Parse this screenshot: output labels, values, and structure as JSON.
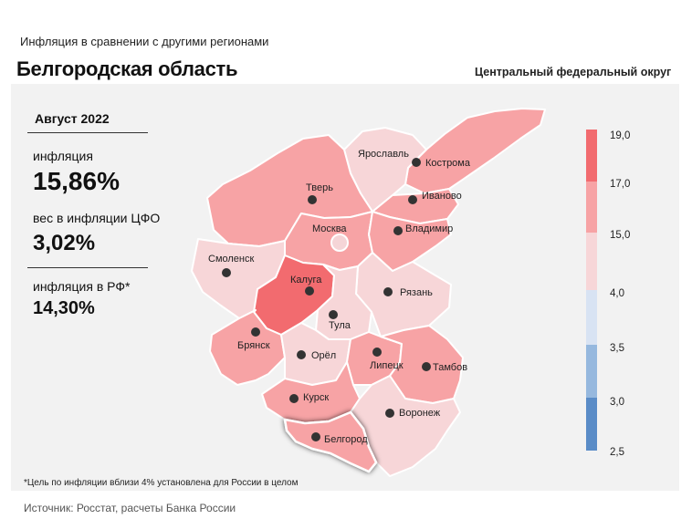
{
  "header": {
    "subtitle": "Инфляция  в сравнении  с другими регионами",
    "region_name": "Белгородская область",
    "district": "Центральный федеральный округ"
  },
  "info": {
    "month": "Август 2022",
    "inflation_label": "инфляция",
    "inflation_value": "15,86%",
    "weight_label": "вес в инфляции  ЦФО",
    "weight_value": "3,02%",
    "rf_label": "инфляция  в РФ*",
    "rf_value": "14,30%"
  },
  "legend": {
    "ticks": [
      "19,0",
      "17,0",
      "15,0",
      "4,0",
      "3,5",
      "3,0",
      "2,5"
    ],
    "colors": {
      "band_17_19": "#f26b6f",
      "band_15_17": "#f7a3a5",
      "band_4_15": "#f7d6d8",
      "band_35_4": "#d8e3f3",
      "band_3_35": "#96b8de",
      "band_25_3": "#5a8cc7"
    }
  },
  "regions": [
    {
      "name": "Ярославль",
      "fill": "#f7d6d8"
    },
    {
      "name": "Кострома",
      "fill": "#f7a3a5"
    },
    {
      "name": "Тверь",
      "fill": "#f7a3a5"
    },
    {
      "name": "Иваново",
      "fill": "#f7a3a5"
    },
    {
      "name": "Москва",
      "fill": "#f7a3a5"
    },
    {
      "name": "Владимир",
      "fill": "#f7a3a5"
    },
    {
      "name": "Смоленск",
      "fill": "#f7d6d8"
    },
    {
      "name": "Калуга",
      "fill": "#f26b6f"
    },
    {
      "name": "Рязань",
      "fill": "#f7d6d8"
    },
    {
      "name": "Тула",
      "fill": "#f7d6d8"
    },
    {
      "name": "Брянск",
      "fill": "#f7a3a5"
    },
    {
      "name": "Орёл",
      "fill": "#f7d6d8"
    },
    {
      "name": "Липецк",
      "fill": "#f7a3a5"
    },
    {
      "name": "Тамбов",
      "fill": "#f7a3a5"
    },
    {
      "name": "Курск",
      "fill": "#f7a3a5"
    },
    {
      "name": "Воронеж",
      "fill": "#f7d6d8"
    },
    {
      "name": "Белгород",
      "fill": "#f7a3a5",
      "highlighted": true
    }
  ],
  "footnote": "*Цель по инфляции вблизи 4% установлена для России в целом",
  "source": "Источник: Росстат, расчеты Банка России"
}
